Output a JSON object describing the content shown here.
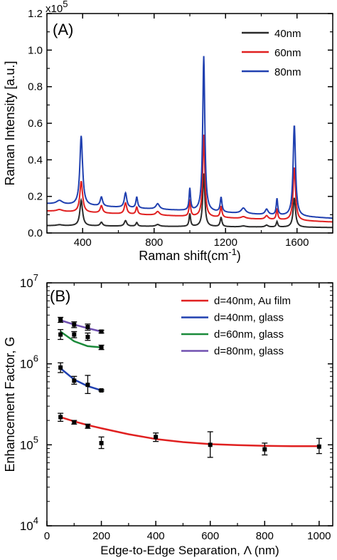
{
  "chart_data": [
    {
      "type": "line",
      "panel_label": "(A)",
      "xlabel": "Raman shift(cm",
      "xlabel_sup": "-1",
      "xlabel_end": ")",
      "ylabel": "Raman Intensity [a.u.]",
      "y_multiplier": "x10",
      "y_multiplier_exp": "5",
      "xlim": [
        200,
        1800
      ],
      "ylim": [
        0,
        1.2
      ],
      "xticks": [
        400,
        800,
        1200,
        1600
      ],
      "xtick_labels": [
        "400",
        "800",
        "1200",
        "1600"
      ],
      "yticks": [
        0.0,
        0.2,
        0.4,
        0.6,
        0.8,
        1.0,
        1.2
      ],
      "ytick_labels": [
        "0.0",
        "0.2",
        "0.4",
        "0.6",
        "0.8",
        "1.0",
        "1.2"
      ],
      "legend_position": "top-right",
      "peaks": [
        {
          "pos": 270,
          "w": 20
        },
        {
          "pos": 392,
          "w": 9
        },
        {
          "pos": 505,
          "w": 8
        },
        {
          "pos": 640,
          "w": 8
        },
        {
          "pos": 703,
          "w": 6
        },
        {
          "pos": 820,
          "w": 12
        },
        {
          "pos": 1000,
          "w": 5
        },
        {
          "pos": 1078,
          "w": 7
        },
        {
          "pos": 1175,
          "w": 6
        },
        {
          "pos": 1300,
          "w": 15
        },
        {
          "pos": 1430,
          "w": 10
        },
        {
          "pos": 1488,
          "w": 5
        },
        {
          "pos": 1585,
          "w": 8
        }
      ],
      "series": [
        {
          "name": "40nm",
          "color": "#2b2b2b",
          "baseline": [
            0.04,
            0.03
          ],
          "amplitudes": [
            0.005,
            0.14,
            0.02,
            0.03,
            0.02,
            0.01,
            0.07,
            0.29,
            0.05,
            0.005,
            0.01,
            0.03,
            0.16
          ]
        },
        {
          "name": "60nm",
          "color": "#e02020",
          "baseline": [
            0.12,
            0.06
          ],
          "amplitudes": [
            0.01,
            0.17,
            0.04,
            0.06,
            0.04,
            0.02,
            0.09,
            0.45,
            0.06,
            0.01,
            0.02,
            0.06,
            0.29
          ]
        },
        {
          "name": "80nm",
          "color": "#2040b0",
          "baseline": [
            0.16,
            0.08
          ],
          "amplitudes": [
            0.02,
            0.38,
            0.05,
            0.08,
            0.06,
            0.03,
            0.12,
            0.85,
            0.08,
            0.03,
            0.03,
            0.09,
            0.5
          ]
        }
      ]
    },
    {
      "type": "scatter",
      "panel_label": "(B)",
      "xlabel": "Edge-to-Edge Separation, Λ (nm)",
      "ylabel": "Enhancement Factor, G",
      "xlim": [
        0,
        1050
      ],
      "ylim": [
        10000,
        10000000
      ],
      "y_scale": "log",
      "xticks": [
        0,
        200,
        400,
        600,
        800,
        1000
      ],
      "xtick_labels": [
        "0",
        "200",
        "400",
        "600",
        "800",
        "1000"
      ],
      "yticks": [
        10000,
        100000,
        1000000,
        10000000
      ],
      "ytick_base": "10",
      "ytick_exps": [
        "4",
        "5",
        "6",
        "7"
      ],
      "legend_position": "top-right",
      "series": [
        {
          "name": "d=40nm, Au film",
          "color": "#e02020",
          "points": [
            {
              "x": 50,
              "y": 220000,
              "lo": 195000,
              "hi": 245000
            },
            {
              "x": 100,
              "y": 190000,
              "lo": 180000,
              "hi": 200000
            },
            {
              "x": 150,
              "y": 170000,
              "lo": 160000,
              "hi": 180000
            },
            {
              "x": 200,
              "y": 105000,
              "lo": 90000,
              "hi": 125000
            },
            {
              "x": 400,
              "y": 125000,
              "lo": 110000,
              "hi": 140000
            },
            {
              "x": 600,
              "y": 100000,
              "lo": 70000,
              "hi": 145000
            },
            {
              "x": 800,
              "y": 88000,
              "lo": 75000,
              "hi": 105000
            },
            {
              "x": 1000,
              "y": 95000,
              "lo": 78000,
              "hi": 120000
            }
          ],
          "fit": {
            "x": [
              50,
              100,
              150,
              200,
              300,
              400,
              500,
              600,
              700,
              800,
              900,
              1000
            ],
            "y": [
              220000,
              195000,
              175000,
              160000,
              135000,
              118000,
              108000,
              102000,
              99000,
              97000,
              96000,
              96000
            ]
          }
        },
        {
          "name": "d=40nm, glass",
          "color": "#2040b0",
          "points": [
            {
              "x": 50,
              "y": 900000,
              "lo": 780000,
              "hi": 1030000
            },
            {
              "x": 100,
              "y": 620000,
              "lo": 560000,
              "hi": 700000
            },
            {
              "x": 150,
              "y": 550000,
              "lo": 430000,
              "hi": 720000
            },
            {
              "x": 200,
              "y": 470000,
              "lo": 460000,
              "hi": 480000
            }
          ],
          "fit": {
            "x": [
              50,
              100,
              150,
              200
            ],
            "y": [
              880000,
              640000,
              530000,
              470000
            ]
          }
        },
        {
          "name": "d=60nm, glass",
          "color": "#1a8a3a",
          "points": [
            {
              "x": 50,
              "y": 2300000,
              "lo": 2000000,
              "hi": 2650000
            },
            {
              "x": 100,
              "y": 2300000,
              "lo": 2100000,
              "hi": 2500000
            },
            {
              "x": 150,
              "y": 2150000,
              "lo": 1950000,
              "hi": 2400000
            },
            {
              "x": 200,
              "y": 1600000,
              "lo": 1500000,
              "hi": 1700000
            }
          ],
          "fit": {
            "x": [
              50,
              100,
              150,
              200
            ],
            "y": [
              2500000,
              1900000,
              1650000,
              1600000
            ]
          }
        },
        {
          "name": "d=80nm, glass",
          "color": "#7050b0",
          "points": [
            {
              "x": 50,
              "y": 3500000,
              "lo": 3250000,
              "hi": 3750000
            },
            {
              "x": 100,
              "y": 3050000,
              "lo": 2800000,
              "hi": 3300000
            },
            {
              "x": 150,
              "y": 2850000,
              "lo": 2600000,
              "hi": 3100000
            },
            {
              "x": 200,
              "y": 2500000,
              "lo": 2400000,
              "hi": 2600000
            }
          ],
          "fit": {
            "x": [
              50,
              100,
              150,
              200
            ],
            "y": [
              3450000,
              3050000,
              2750000,
              2500000
            ]
          }
        }
      ]
    }
  ]
}
